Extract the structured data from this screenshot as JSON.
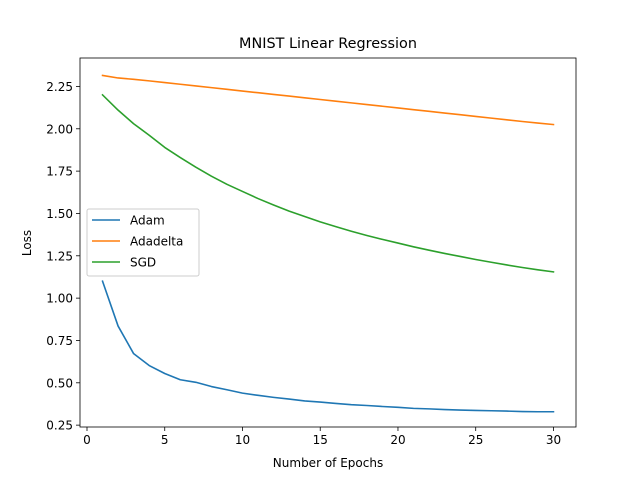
{
  "chart_data": {
    "type": "line",
    "title": "MNIST Linear Regression",
    "xlabel": "Number of Epochs",
    "ylabel": "Loss",
    "xlim": [
      -0.45,
      31.45
    ],
    "ylim": [
      0.239,
      2.418
    ],
    "xticks": [
      0,
      5,
      10,
      15,
      20,
      25,
      30
    ],
    "xtick_labels": [
      "0",
      "5",
      "10",
      "15",
      "20",
      "25",
      "30"
    ],
    "yticks": [
      0.25,
      0.5,
      0.75,
      1.0,
      1.25,
      1.5,
      1.75,
      2.0,
      2.25
    ],
    "ytick_labels": [
      "0.25",
      "0.50",
      "0.75",
      "1.00",
      "1.25",
      "1.50",
      "1.75",
      "2.00",
      "2.25"
    ],
    "grid": false,
    "legend_position": "center-left",
    "x": [
      1,
      2,
      3,
      4,
      5,
      6,
      7,
      8,
      9,
      10,
      11,
      12,
      13,
      14,
      15,
      16,
      17,
      18,
      19,
      20,
      21,
      22,
      23,
      24,
      25,
      26,
      27,
      28,
      29,
      30
    ],
    "series": [
      {
        "name": "Adam",
        "color": "#1f77b4",
        "values": [
          1.1,
          0.835,
          0.672,
          0.602,
          0.555,
          0.518,
          0.503,
          0.478,
          0.459,
          0.439,
          0.426,
          0.414,
          0.404,
          0.393,
          0.386,
          0.378,
          0.371,
          0.366,
          0.36,
          0.355,
          0.349,
          0.346,
          0.342,
          0.339,
          0.337,
          0.335,
          0.333,
          0.33,
          0.329,
          0.329
        ]
      },
      {
        "name": "Adadelta",
        "color": "#ff7f0e",
        "values": [
          2.315,
          2.3,
          2.292,
          2.283,
          2.273,
          2.263,
          2.253,
          2.243,
          2.233,
          2.223,
          2.213,
          2.203,
          2.193,
          2.183,
          2.173,
          2.163,
          2.153,
          2.143,
          2.133,
          2.123,
          2.113,
          2.103,
          2.093,
          2.083,
          2.073,
          2.063,
          2.053,
          2.043,
          2.034,
          2.025
        ]
      },
      {
        "name": "SGD",
        "color": "#2ca02c",
        "values": [
          2.2,
          2.11,
          2.03,
          1.962,
          1.89,
          1.83,
          1.773,
          1.72,
          1.672,
          1.63,
          1.588,
          1.55,
          1.514,
          1.482,
          1.45,
          1.422,
          1.395,
          1.37,
          1.347,
          1.325,
          1.303,
          1.283,
          1.264,
          1.246,
          1.228,
          1.212,
          1.196,
          1.181,
          1.167,
          1.155
        ]
      }
    ]
  }
}
